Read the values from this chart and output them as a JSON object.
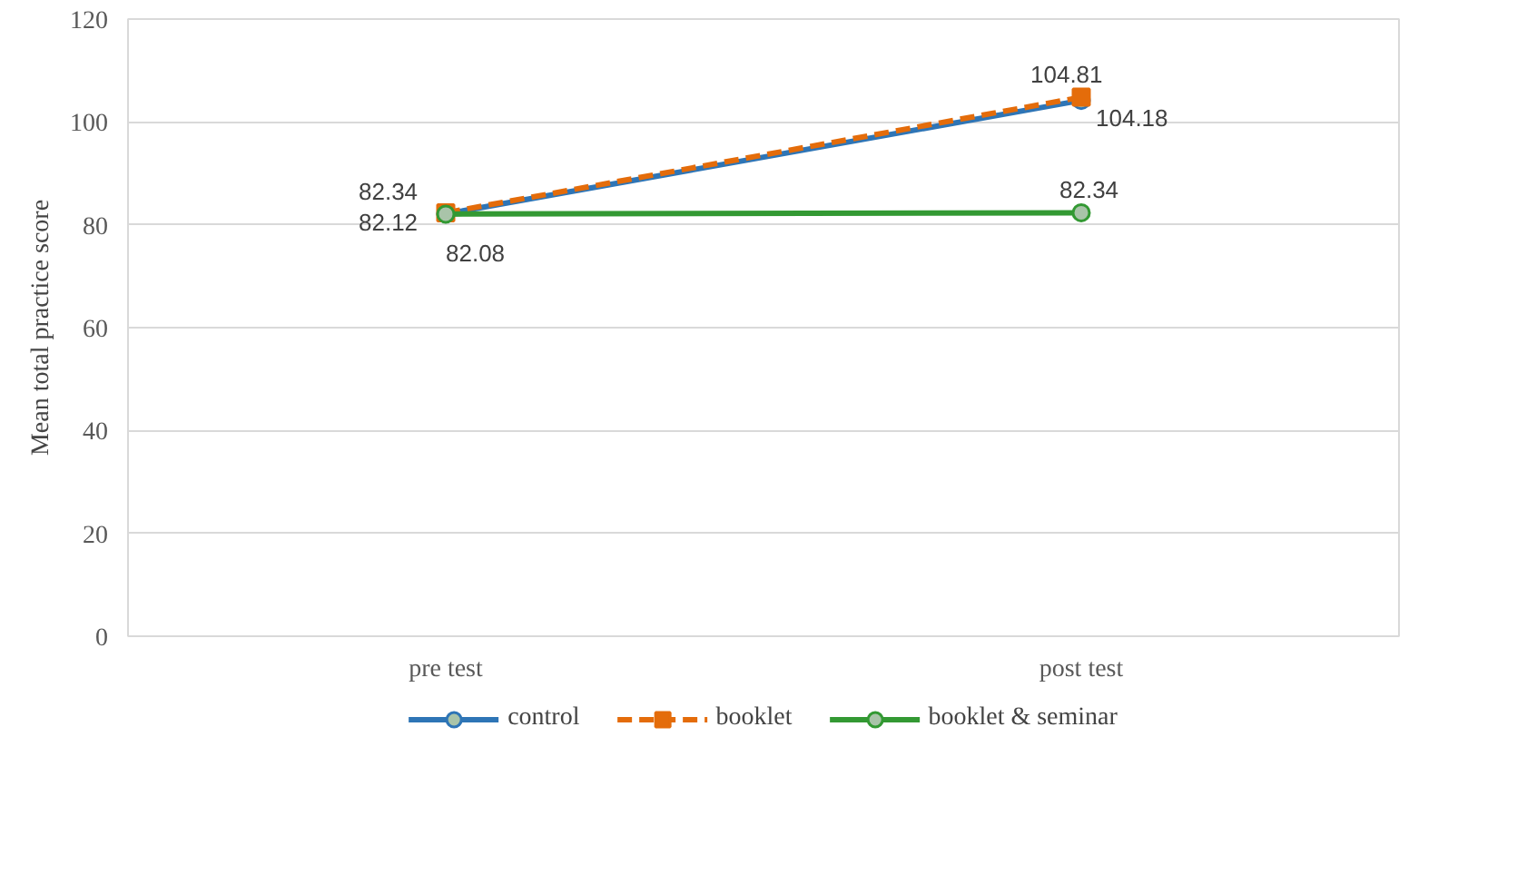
{
  "chart_data": {
    "type": "line",
    "ylabel": "Mean total practice score",
    "categories": [
      "pre test",
      "post test"
    ],
    "ylim": [
      0,
      120
    ],
    "yticks": [
      0,
      20,
      40,
      60,
      80,
      100,
      120
    ],
    "grid": "y",
    "legend": "bottom",
    "data_labels": true,
    "series": [
      {
        "name": "control",
        "color": "#2e75b6",
        "values": [
          82.12,
          104.18
        ],
        "marker": "circle",
        "line_style": "solid"
      },
      {
        "name": "booklet",
        "color": "#e46c0a",
        "values": [
          82.34,
          104.81
        ],
        "marker": "square",
        "line_style": "dashed"
      },
      {
        "name": "booklet & seminar",
        "color": "#339933",
        "values": [
          82.08,
          82.34
        ],
        "marker": "circle",
        "line_style": "solid"
      }
    ]
  }
}
